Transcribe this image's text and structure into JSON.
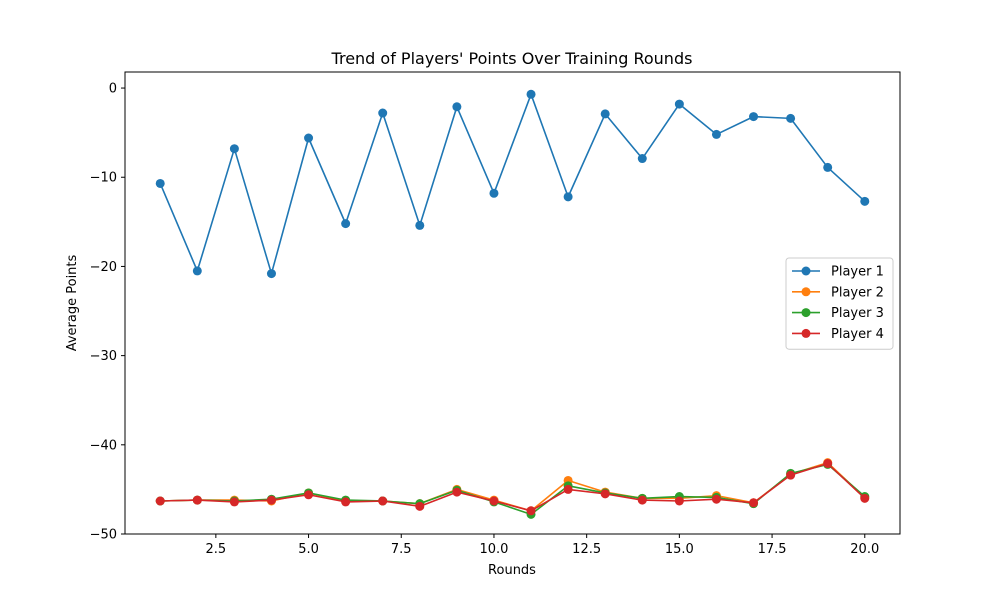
{
  "chart_data": {
    "type": "line",
    "title": "Trend of Players' Points Over Training Rounds",
    "xlabel": "Rounds",
    "ylabel": "Average Points",
    "xlim": [
      0.05,
      20.95
    ],
    "ylim": [
      -50,
      1.8
    ],
    "xticks": [
      2.5,
      5.0,
      7.5,
      10.0,
      12.5,
      15.0,
      17.5,
      20.0
    ],
    "xtick_labels": [
      "2.5",
      "5.0",
      "7.5",
      "10.0",
      "12.5",
      "15.0",
      "17.5",
      "20.0"
    ],
    "yticks": [
      0,
      -10,
      -20,
      -30,
      -40,
      -50
    ],
    "ytick_labels": [
      "0",
      "−10",
      "−20",
      "−30",
      "−40",
      "−50"
    ],
    "grid": false,
    "legend_position": "center-right",
    "x": [
      1,
      2,
      3,
      4,
      5,
      6,
      7,
      8,
      9,
      10,
      11,
      12,
      13,
      14,
      15,
      16,
      17,
      18,
      19,
      20
    ],
    "series": [
      {
        "name": "Player 1",
        "color": "#1f77b4",
        "values": [
          -10.7,
          -20.5,
          -6.8,
          -20.8,
          -5.6,
          -15.2,
          -2.8,
          -15.4,
          -2.1,
          -11.8,
          -0.7,
          -12.2,
          -2.9,
          -7.9,
          -1.8,
          -5.2,
          -3.2,
          -3.4,
          -8.9,
          -12.7
        ]
      },
      {
        "name": "Player 2",
        "color": "#ff7f0e",
        "values": [
          -46.3,
          -46.2,
          -46.2,
          -46.3,
          -45.4,
          -46.3,
          -46.3,
          -46.6,
          -45.0,
          -46.2,
          -47.4,
          -44.0,
          -45.3,
          -46.0,
          -46.0,
          -45.7,
          -46.5,
          -43.3,
          -42.0,
          -45.9
        ]
      },
      {
        "name": "Player 3",
        "color": "#2ca02c",
        "values": [
          -46.3,
          -46.2,
          -46.3,
          -46.1,
          -45.4,
          -46.2,
          -46.3,
          -46.6,
          -45.1,
          -46.4,
          -47.8,
          -44.6,
          -45.4,
          -46.0,
          -45.8,
          -45.9,
          -46.6,
          -43.2,
          -42.2,
          -45.8
        ]
      },
      {
        "name": "Player 4",
        "color": "#d62728",
        "values": [
          -46.3,
          -46.2,
          -46.4,
          -46.2,
          -45.6,
          -46.4,
          -46.3,
          -46.9,
          -45.3,
          -46.3,
          -47.4,
          -45.0,
          -45.5,
          -46.2,
          -46.3,
          -46.1,
          -46.5,
          -43.4,
          -42.1,
          -46.0
        ]
      }
    ]
  }
}
